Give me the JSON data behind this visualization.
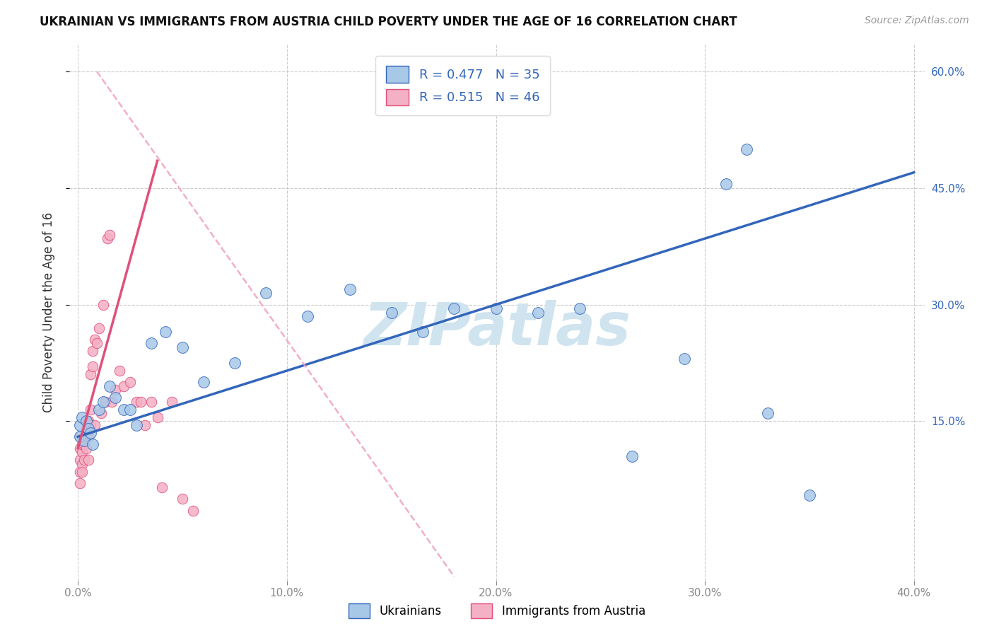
{
  "title": "UKRAINIAN VS IMMIGRANTS FROM AUSTRIA CHILD POVERTY UNDER THE AGE OF 16 CORRELATION CHART",
  "source": "Source: ZipAtlas.com",
  "ylabel": "Child Poverty Under the Age of 16",
  "legend_label_1": "Ukrainians",
  "legend_label_2": "Immigrants from Austria",
  "r1": 0.477,
  "n1": 35,
  "r2": 0.515,
  "n2": 46,
  "color_blue": "#a8c8e8",
  "color_pink": "#f4b0c4",
  "color_blue_line": "#3366bb",
  "color_pink_line": "#e0507a",
  "color_pink_dashed": "#f0a0c0",
  "watermark": "ZIPatlas",
  "watermark_color": "#d0e4f0",
  "xlim": [
    -0.004,
    0.405
  ],
  "ylim": [
    -0.055,
    0.635
  ],
  "xtick_vals": [
    0.0,
    0.1,
    0.2,
    0.3,
    0.4
  ],
  "xticklabels": [
    "0.0%",
    "10.0%",
    "20.0%",
    "30.0%",
    "40.0%"
  ],
  "ytick_vals": [
    0.15,
    0.3,
    0.45,
    0.6
  ],
  "yticklabels_right": [
    "15.0%",
    "30.0%",
    "45.0%",
    "60.0%"
  ],
  "blue_x": [
    0.001,
    0.001,
    0.002,
    0.003,
    0.004,
    0.005,
    0.006,
    0.007,
    0.01,
    0.012,
    0.015,
    0.018,
    0.022,
    0.025,
    0.028,
    0.035,
    0.042,
    0.05,
    0.06,
    0.075,
    0.09,
    0.11,
    0.13,
    0.15,
    0.165,
    0.18,
    0.2,
    0.22,
    0.24,
    0.265,
    0.29,
    0.31,
    0.33,
    0.35,
    0.32
  ],
  "blue_y": [
    0.13,
    0.145,
    0.155,
    0.125,
    0.15,
    0.14,
    0.135,
    0.12,
    0.165,
    0.175,
    0.195,
    0.18,
    0.165,
    0.165,
    0.145,
    0.25,
    0.265,
    0.245,
    0.2,
    0.225,
    0.315,
    0.285,
    0.32,
    0.29,
    0.265,
    0.295,
    0.295,
    0.29,
    0.295,
    0.105,
    0.23,
    0.455,
    0.16,
    0.055,
    0.5
  ],
  "pink_x": [
    0.001,
    0.001,
    0.001,
    0.001,
    0.001,
    0.002,
    0.002,
    0.002,
    0.002,
    0.003,
    0.003,
    0.003,
    0.004,
    0.004,
    0.004,
    0.005,
    0.005,
    0.005,
    0.006,
    0.006,
    0.006,
    0.007,
    0.007,
    0.008,
    0.008,
    0.009,
    0.01,
    0.011,
    0.012,
    0.013,
    0.014,
    0.015,
    0.016,
    0.018,
    0.02,
    0.022,
    0.025,
    0.028,
    0.03,
    0.032,
    0.035,
    0.038,
    0.04,
    0.045,
    0.05,
    0.055
  ],
  "pink_y": [
    0.085,
    0.1,
    0.115,
    0.13,
    0.07,
    0.095,
    0.11,
    0.12,
    0.085,
    0.13,
    0.12,
    0.1,
    0.14,
    0.135,
    0.115,
    0.15,
    0.13,
    0.1,
    0.145,
    0.165,
    0.21,
    0.22,
    0.24,
    0.145,
    0.255,
    0.25,
    0.27,
    0.16,
    0.3,
    0.175,
    0.385,
    0.39,
    0.175,
    0.19,
    0.215,
    0.195,
    0.2,
    0.175,
    0.175,
    0.145,
    0.175,
    0.155,
    0.065,
    0.175,
    0.05,
    0.035
  ],
  "blue_line_x0": 0.0,
  "blue_line_x1": 0.4,
  "blue_line_y0": 0.13,
  "blue_line_y1": 0.47,
  "pink_line_solid_x0": 0.0,
  "pink_line_solid_x1": 0.038,
  "pink_line_solid_y0": 0.115,
  "pink_line_solid_y1": 0.485,
  "pink_line_dashed_x0": 0.009,
  "pink_line_dashed_x1": 0.18,
  "pink_line_dashed_y0": 0.6,
  "pink_line_dashed_y1": -0.05
}
